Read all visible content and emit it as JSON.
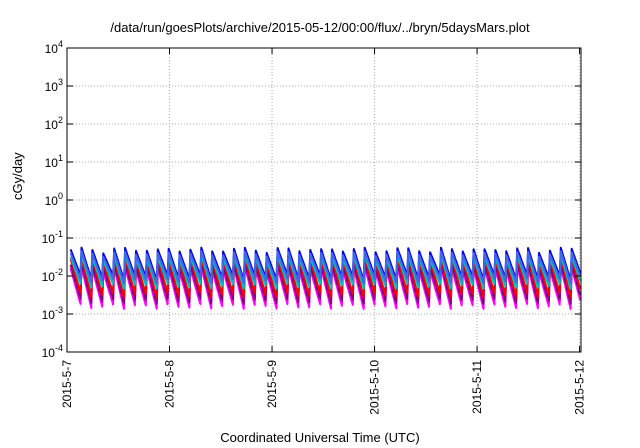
{
  "chart_data": {
    "type": "line",
    "title": "/data/run/goesPlots/archive/2015-05-12/00:00/flux/../bryn/5daysMars.plot",
    "xlabel": "Coordinated Universal Time (UTC)",
    "ylabel": "cGy/day",
    "y_scale": "log",
    "ylim": [
      0.0001,
      10000
    ],
    "y_ticks": [
      {
        "base": "10",
        "exp": "-4"
      },
      {
        "base": "10",
        "exp": "-3"
      },
      {
        "base": "10",
        "exp": "-2"
      },
      {
        "base": "10",
        "exp": "-1"
      },
      {
        "base": "10",
        "exp": "0"
      },
      {
        "base": "10",
        "exp": "1"
      },
      {
        "base": "10",
        "exp": "2"
      },
      {
        "base": "10",
        "exp": "3"
      },
      {
        "base": "10",
        "exp": "4"
      }
    ],
    "x_ticks": [
      "2015-5-7",
      "2015-5-8",
      "2015-5-9",
      "2015-5-10",
      "2015-5-11",
      "2015-5-12"
    ],
    "xlim": [
      "2015-05-07 00:00",
      "2015-05-12 00:20"
    ],
    "grid": true,
    "pulse_period_hours": 2.55,
    "series": [
      {
        "color": "#ff00ff",
        "peak": 0.016,
        "trough": 0.0016
      },
      {
        "color": "#800080",
        "peak": 0.02,
        "trough": 0.0022
      },
      {
        "color": "#ff0000",
        "peak": 0.028,
        "trough": 0.0032
      },
      {
        "color": "#00c0c0",
        "peak": 0.032,
        "trough": 0.0055
      },
      {
        "color": "#0000ff",
        "peak": 0.05,
        "trough": 0.009
      },
      {
        "color": "#4169e1",
        "peak": 0.04,
        "trough": 0.0075
      }
    ]
  }
}
